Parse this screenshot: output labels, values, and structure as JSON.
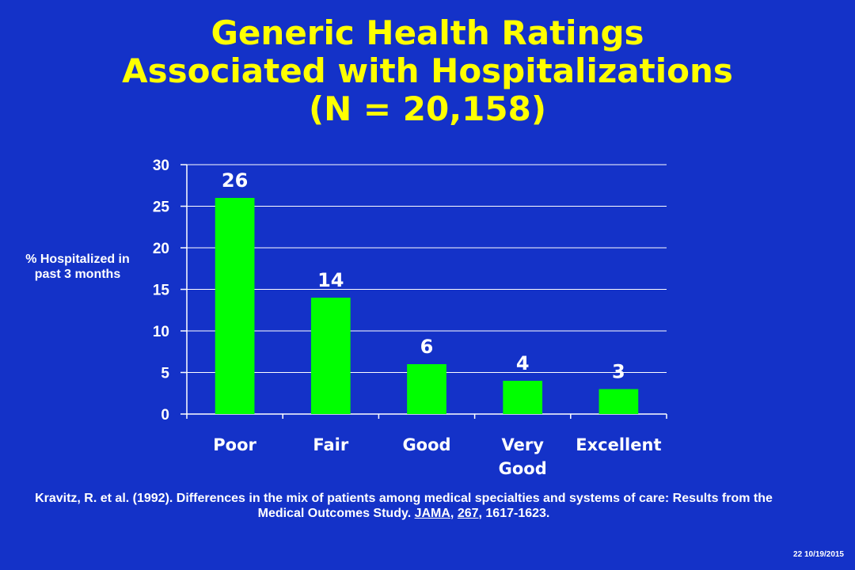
{
  "slide": {
    "title_lines": [
      "Generic Health Ratings",
      "Associated with Hospitalizations",
      "(N = 20,158)"
    ],
    "footer_stamp": "22 10/19/2015"
  },
  "citation": {
    "part1": "Kravitz, R. et al.  (1992).  Differences in the mix of patients among medical specialties and systems of care:  Results from the Medical Outcomes Study.  ",
    "journal": "JAMA",
    "sep1": ", ",
    "volume": "267",
    "pages": ", 1617-1623."
  },
  "colors": {
    "background": "#1432c8",
    "title": "#ffff00",
    "bar": "#00ff00",
    "text": "#ffffff",
    "axis": "#ffffff"
  },
  "chart_data": {
    "type": "bar",
    "categories": [
      "Poor",
      "Fair",
      "Good",
      "Very Good",
      "Excellent"
    ],
    "category_label_lines": [
      [
        "Poor"
      ],
      [
        "Fair"
      ],
      [
        "Good"
      ],
      [
        "Very",
        "Good"
      ],
      [
        "Excellent"
      ]
    ],
    "values": [
      26,
      14,
      6,
      4,
      3
    ],
    "data_labels": [
      "26",
      "14",
      "6",
      "4",
      "3"
    ],
    "title": "Generic Health Ratings Associated with Hospitalizations (N = 20,158)",
    "xlabel": "",
    "ylabel": "% Hospitalized in past 3 months",
    "ylim": [
      0,
      30
    ],
    "yticks": [
      0,
      5,
      10,
      15,
      20,
      25,
      30
    ],
    "grid": true,
    "legend": "none"
  }
}
